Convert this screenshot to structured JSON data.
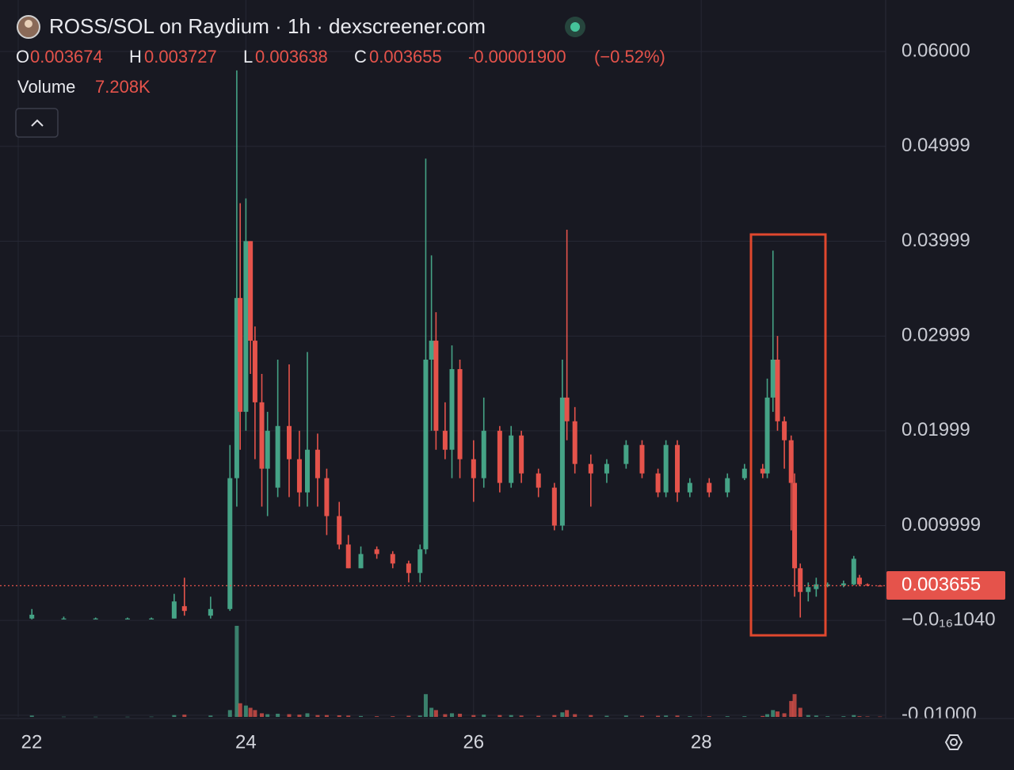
{
  "chart_data": {
    "type": "candlestick",
    "title": "ROSS/SOL on Raydium · 1h · dexscreener.com",
    "ohlc_labels": [
      "O",
      "H",
      "L",
      "C"
    ],
    "change": "-0.00001900",
    "change_percent": "(−0.52%)",
    "volume_label": "Volume",
    "volume_last_label": "7.208K",
    "up_color": "#45a386",
    "down_color": "#e5534b",
    "grid": true,
    "xlim": [
      21.84,
      29.62
    ],
    "xticks": [
      22,
      24,
      26,
      28
    ],
    "ylim": [
      -0.01018,
      0.06543
    ],
    "yticks": [
      {
        "value": 0.06,
        "label": "0.06000"
      },
      0.04999,
      0.03999,
      0.02999,
      0.01999,
      0.009999,
      {
        "value": -1.04e-16,
        "label": "−0.0₁₆1040"
      },
      {
        "value": -0.01,
        "label": "-0.01000"
      }
    ],
    "x": [
      22.12,
      22.4,
      22.68,
      22.96,
      23.17,
      23.37,
      23.46,
      23.69,
      23.86,
      23.92,
      23.95,
      24.0,
      24.04,
      24.08,
      24.14,
      24.19,
      24.28,
      24.38,
      24.47,
      24.54,
      24.63,
      24.71,
      24.82,
      24.9,
      25.01,
      25.15,
      25.29,
      25.43,
      25.53,
      25.58,
      25.63,
      25.67,
      25.75,
      25.81,
      25.88,
      26.0,
      26.09,
      26.23,
      26.33,
      26.42,
      26.57,
      26.71,
      26.78,
      26.82,
      26.89,
      27.03,
      27.17,
      27.34,
      27.48,
      27.62,
      27.69,
      27.79,
      27.9,
      28.07,
      28.23,
      28.38,
      28.54,
      28.58,
      28.63,
      28.67,
      28.73,
      28.79,
      28.82,
      28.87,
      28.94,
      29.01,
      29.11,
      29.25,
      29.34,
      29.39,
      29.46,
      29.57
    ],
    "open": [
      0.0002,
      0.0002,
      0.0002,
      0.0002,
      0.0002,
      0.0002,
      0.0015,
      0.0005,
      0.0012,
      0.015,
      0.034,
      0.022,
      0.04,
      0.0295,
      0.023,
      0.016,
      0.014,
      0.0205,
      0.017,
      0.0135,
      0.018,
      0.015,
      0.011,
      0.008,
      0.0055,
      0.0075,
      0.007,
      0.006,
      0.005,
      0.0075,
      0.0275,
      0.0295,
      0.02,
      0.018,
      0.0265,
      0.017,
      0.015,
      0.02,
      0.0145,
      0.0195,
      0.0155,
      0.014,
      0.01,
      0.0235,
      0.021,
      0.0165,
      0.0155,
      0.0165,
      0.0185,
      0.0155,
      0.0135,
      0.0185,
      0.0135,
      0.0145,
      0.0135,
      0.015,
      0.016,
      0.0155,
      0.0235,
      0.0275,
      0.021,
      0.019,
      0.0145,
      0.0055,
      0.003,
      0.0033,
      0.0036,
      0.0037,
      0.0038,
      0.0045,
      0.0038,
      0.003674
    ],
    "high": [
      0.0012,
      0.0004,
      0.0003,
      0.0003,
      0.0003,
      0.0028,
      0.0045,
      0.0025,
      0.0185,
      0.058,
      0.044,
      0.0445,
      0.04,
      0.031,
      0.026,
      0.022,
      0.0275,
      0.027,
      0.02,
      0.0283,
      0.0197,
      0.016,
      0.0125,
      0.009,
      0.0078,
      0.0078,
      0.0073,
      0.0063,
      0.008,
      0.0487,
      0.0385,
      0.0325,
      0.023,
      0.029,
      0.0275,
      0.019,
      0.0235,
      0.0205,
      0.0205,
      0.02,
      0.016,
      0.0145,
      0.0275,
      0.0412,
      0.0225,
      0.0175,
      0.017,
      0.019,
      0.019,
      0.016,
      0.019,
      0.019,
      0.015,
      0.015,
      0.0155,
      0.0165,
      0.0165,
      0.0255,
      0.039,
      0.03,
      0.0215,
      0.0195,
      0.0155,
      0.006,
      0.004,
      0.0045,
      0.004,
      0.0042,
      0.0068,
      0.0048,
      0.0039,
      0.003727
    ],
    "low": [
      0.0001,
      0.0001,
      0.0001,
      0.0001,
      0.0001,
      0.0002,
      0.0005,
      0.0002,
      0.001,
      0.012,
      0.018,
      0.02,
      0.026,
      0.017,
      0.012,
      0.011,
      0.013,
      0.013,
      0.012,
      0.012,
      0.012,
      0.009,
      0.0075,
      0.0055,
      0.0055,
      0.0065,
      0.0055,
      0.004,
      0.004,
      0.007,
      0.02,
      0.018,
      0.017,
      0.015,
      0.015,
      0.0125,
      0.014,
      0.0135,
      0.014,
      0.0145,
      0.013,
      0.0095,
      0.0095,
      0.019,
      0.0155,
      0.012,
      0.0145,
      0.016,
      0.015,
      0.013,
      0.013,
      0.0125,
      0.013,
      0.013,
      0.013,
      0.0148,
      0.015,
      0.015,
      0.022,
      0.02,
      0.016,
      0.0095,
      0.0025,
      0.0003,
      0.002,
      0.0025,
      0.0035,
      0.0035,
      0.0037,
      0.0036,
      0.0036,
      0.003638
    ],
    "close": [
      0.0006,
      0.0002,
      0.0002,
      0.0002,
      0.0002,
      0.002,
      0.001,
      0.0012,
      0.015,
      0.034,
      0.022,
      0.04,
      0.0295,
      0.023,
      0.016,
      0.02,
      0.0205,
      0.017,
      0.0135,
      0.018,
      0.015,
      0.011,
      0.008,
      0.0055,
      0.007,
      0.007,
      0.006,
      0.005,
      0.0075,
      0.0275,
      0.0295,
      0.02,
      0.018,
      0.0265,
      0.017,
      0.015,
      0.02,
      0.0145,
      0.0195,
      0.0155,
      0.014,
      0.01,
      0.0235,
      0.021,
      0.0165,
      0.0155,
      0.0165,
      0.0185,
      0.0155,
      0.0135,
      0.0185,
      0.0135,
      0.0145,
      0.0135,
      0.015,
      0.016,
      0.0155,
      0.0235,
      0.0275,
      0.021,
      0.019,
      0.0145,
      0.0055,
      0.003,
      0.0035,
      0.0038,
      0.0038,
      0.0039,
      0.0065,
      0.0038,
      0.0037,
      0.003655
    ],
    "volume": [
      30000,
      5000,
      4000,
      4000,
      6000,
      40000,
      50000,
      30000,
      150000,
      2000000,
      300000,
      250000,
      200000,
      150000,
      80000,
      60000,
      70000,
      60000,
      50000,
      80000,
      40000,
      40000,
      35000,
      30000,
      20000,
      15000,
      15000,
      25000,
      30000,
      500000,
      200000,
      150000,
      60000,
      80000,
      70000,
      40000,
      50000,
      40000,
      40000,
      30000,
      25000,
      40000,
      100000,
      150000,
      60000,
      40000,
      25000,
      30000,
      25000,
      25000,
      30000,
      30000,
      15000,
      15000,
      15000,
      15000,
      20000,
      60000,
      150000,
      120000,
      80000,
      350000,
      500000,
      200000,
      40000,
      30000,
      15000,
      15000,
      40000,
      15000,
      10000,
      7208
    ]
  }
}
